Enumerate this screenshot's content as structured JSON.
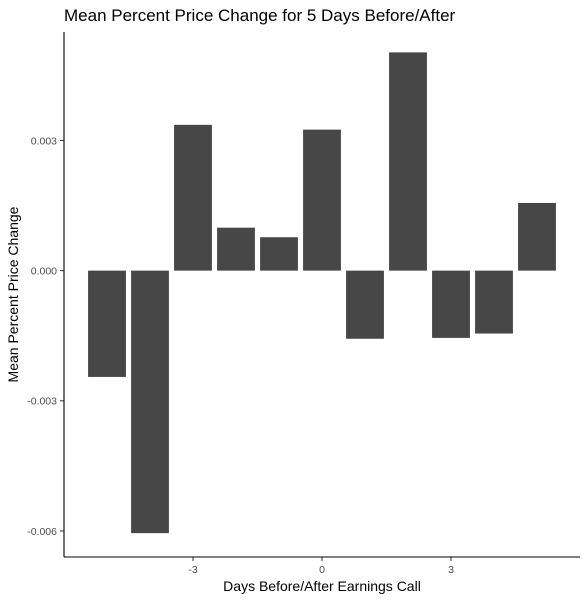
{
  "chart_data": {
    "type": "bar",
    "title": "Mean Percent Price Change for 5 Days Before/After",
    "xlabel": "Days Before/After Earnings Call",
    "ylabel": "Mean Percent Price Change",
    "x": [
      -5,
      -4,
      -3,
      -2,
      -1,
      0,
      1,
      2,
      3,
      4,
      5
    ],
    "values": [
      -0.00245,
      -0.00605,
      0.00336,
      0.00099,
      0.00077,
      0.00325,
      -0.00157,
      0.00503,
      -0.00155,
      -0.00145,
      0.00156
    ],
    "xlim": [
      -6,
      6
    ],
    "ylim": [
      -0.0066,
      0.0055
    ],
    "x_ticks": [
      -3,
      0,
      3
    ],
    "x_tick_labels": [
      "-3",
      "0",
      "3"
    ],
    "y_ticks": [
      -0.006,
      -0.003,
      0.0,
      0.003
    ],
    "y_tick_labels": [
      "-0.006",
      "-0.003",
      "0.000",
      "0.003"
    ],
    "bar_color": "#474747",
    "grid": false,
    "legend": "none"
  }
}
